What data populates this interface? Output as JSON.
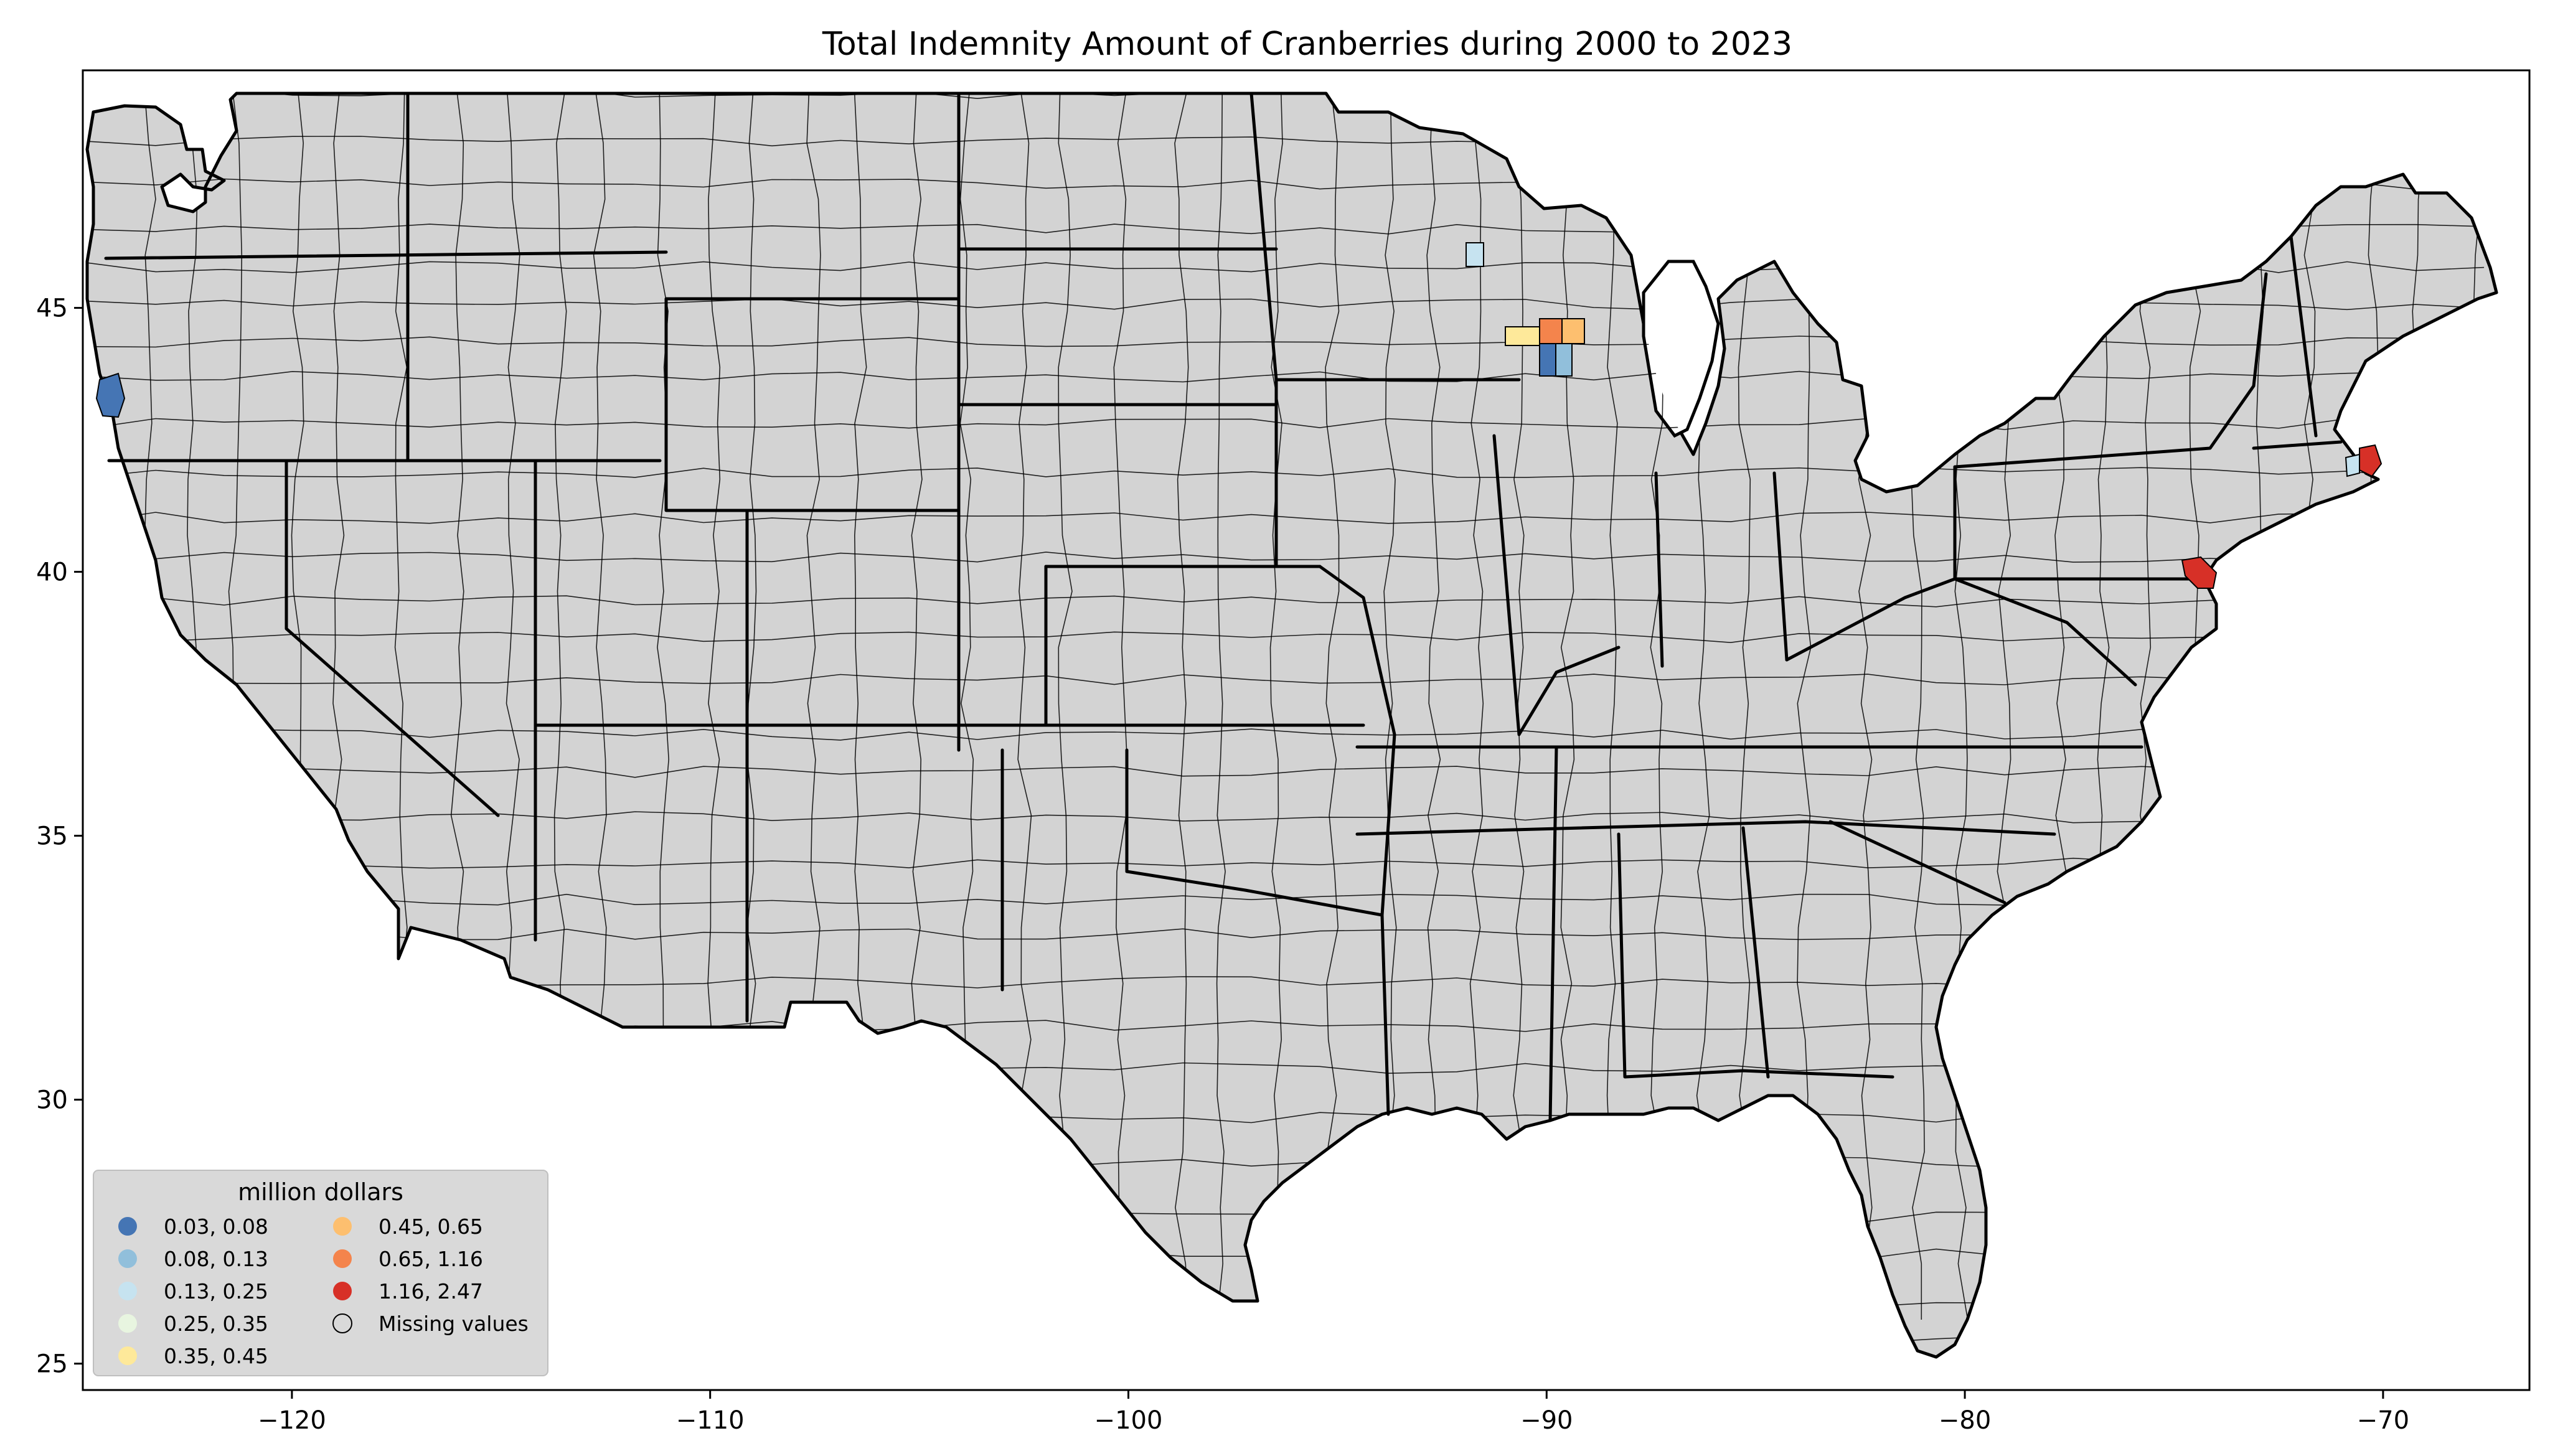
{
  "chart_data": {
    "type": "choropleth",
    "title": "Total Indemnity Amount of Cranberries during 2000 to 2023",
    "xlim": [
      -125,
      -66.5
    ],
    "ylim": [
      24.5,
      49.5
    ],
    "x_ticks": [
      -120,
      -110,
      -100,
      -90,
      -80,
      -70
    ],
    "x_tick_labels": [
      "−120",
      "−110",
      "−100",
      "−90",
      "−80",
      "−70"
    ],
    "y_ticks": [
      25,
      30,
      35,
      40,
      45
    ],
    "y_tick_labels": [
      "25",
      "30",
      "35",
      "40",
      "45"
    ],
    "base_color": "#d3d3d3",
    "legend": {
      "title": "million dollars",
      "placement": "lower-left",
      "entries": [
        {
          "label": "0.03, 0.08",
          "color": "#4575b4"
        },
        {
          "label": "0.08, 0.13",
          "color": "#91bfdb"
        },
        {
          "label": "0.13, 0.25",
          "color": "#c6e3f0"
        },
        {
          "label": "0.25, 0.35",
          "color": "#e8f5e0"
        },
        {
          "label": "0.35, 0.45",
          "color": "#fee99a"
        },
        {
          "label": "0.45, 0.65",
          "color": "#fdbf6f"
        },
        {
          "label": "0.65, 1.16",
          "color": "#f4844c"
        },
        {
          "label": "1.16, 2.47",
          "color": "#d73027"
        },
        {
          "label": "Missing values",
          "color": "none"
        }
      ]
    },
    "highlighted_regions": [
      {
        "lon": -124.2,
        "lat": 43.3,
        "color": "#4575b4"
      },
      {
        "lon": -91.9,
        "lat": 45.9,
        "color": "#c6e3f0"
      },
      {
        "lon": -90.7,
        "lat": 44.4,
        "color": "#fee99a"
      },
      {
        "lon": -89.9,
        "lat": 44.6,
        "color": "#f4844c"
      },
      {
        "lon": -89.4,
        "lat": 44.6,
        "color": "#fdbf6f"
      },
      {
        "lon": -89.9,
        "lat": 44.0,
        "color": "#4575b4"
      },
      {
        "lon": -89.6,
        "lat": 44.0,
        "color": "#91bfdb"
      },
      {
        "lon": -74.6,
        "lat": 39.9,
        "color": "#d73027"
      },
      {
        "lon": -70.8,
        "lat": 41.9,
        "color": "#d73027"
      },
      {
        "lon": -71.3,
        "lat": 41.8,
        "color": "#c6e3f0"
      }
    ]
  }
}
